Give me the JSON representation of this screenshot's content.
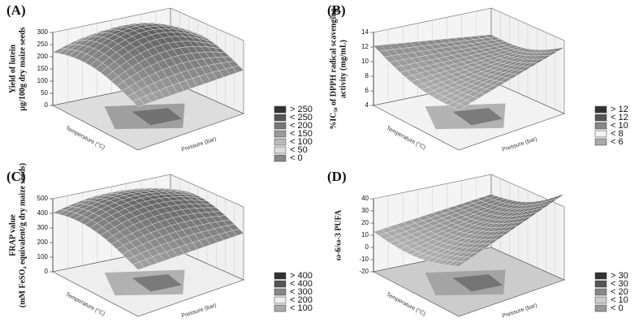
{
  "panels": [
    {
      "label": "(A)",
      "z_title": [
        "Yield of lutein",
        "µg/100g dry maize seeds"
      ],
      "x_title": "Temperature (°C)",
      "y_title": "Pressure (bar)",
      "zticks": [
        0,
        50,
        100,
        150,
        200,
        250,
        300
      ],
      "legend": [
        "> 250",
        "< 250",
        "< 200",
        "< 150",
        "< 100",
        "< 50",
        "< 0"
      ],
      "colors": [
        "#333333",
        "#555555",
        "#777777",
        "#999999",
        "#bbbbbb",
        "#dddddd",
        "#888888"
      ]
    },
    {
      "label": "(B)",
      "z_title": [
        "%IC₅₀ of DPPH radical scavenging",
        "activity (mg/mL)"
      ],
      "x_title": "Temperature (°C)",
      "y_title": "Pressure (bar)",
      "zticks": [
        4,
        6,
        8,
        10,
        12,
        14
      ],
      "legend": [
        "> 12",
        "< 12",
        "< 10",
        "< 8",
        "< 6"
      ],
      "colors": [
        "#333333",
        "#555555",
        "#888888",
        "#f2f2f2",
        "#aaaaaa"
      ]
    },
    {
      "label": "(C)",
      "z_title": [
        "FRAP value",
        "(mM FeSO₄ equivalent/g dry maize seeds)"
      ],
      "x_title": "Temperature (°C)",
      "y_title": "Pressure (bar)",
      "zticks": [
        0,
        100,
        200,
        300,
        400,
        500
      ],
      "legend": [
        "> 400",
        "< 400",
        "< 300",
        "< 200",
        "< 100"
      ],
      "colors": [
        "#333333",
        "#555555",
        "#888888",
        "#eeeeee",
        "#aaaaaa"
      ]
    },
    {
      "label": "(D)",
      "z_title": [
        "ω-6/ω-3 PUFA"
      ],
      "x_title": "Temperature (°C)",
      "y_title": "Pressure (bar)",
      "zticks": [
        -20,
        -10,
        0,
        10,
        20,
        30,
        40
      ],
      "legend": [
        "> 30",
        "< 30",
        "< 20",
        "< 10",
        "< 0"
      ],
      "colors": [
        "#333333",
        "#555555",
        "#888888",
        "#cccccc",
        "#999999"
      ]
    }
  ]
}
